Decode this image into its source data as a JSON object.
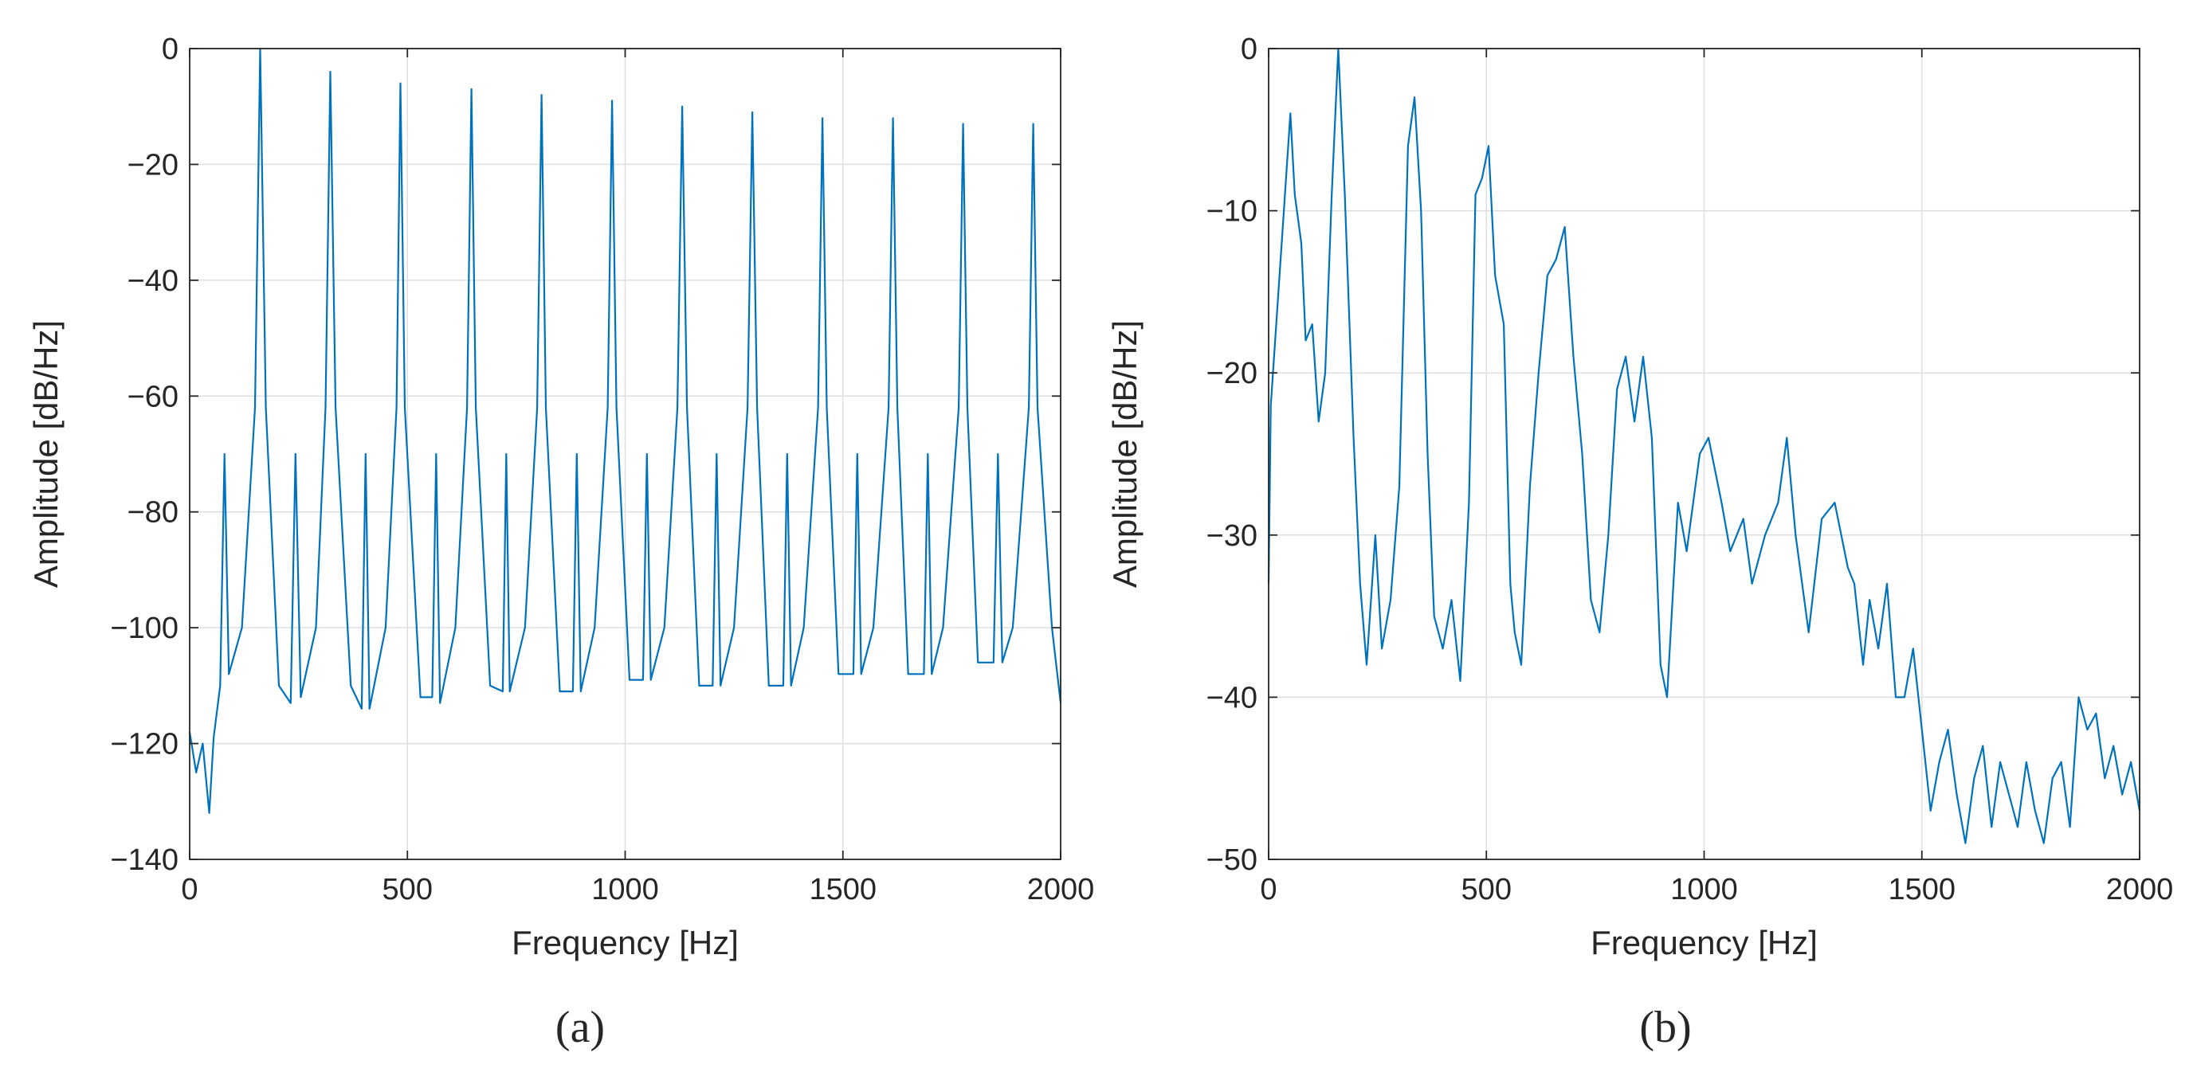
{
  "chart_data": [
    {
      "type": "line",
      "panel_label": "(a)",
      "xlabel": "Frequency [Hz]",
      "ylabel": "Amplitude [dB/Hz]",
      "xlim": [
        0,
        2000
      ],
      "ylim": [
        -140,
        0
      ],
      "xticks": [
        0,
        500,
        1000,
        1500,
        2000
      ],
      "yticks": [
        -140,
        -120,
        -100,
        -80,
        -60,
        -40,
        -20,
        0
      ],
      "xtick_labels": [
        "0",
        "500",
        "1000",
        "1500",
        "2000"
      ],
      "ytick_labels": [
        "−140",
        "−120",
        "−100",
        "−80",
        "−60",
        "−40",
        "−20",
        "0"
      ],
      "grid": true,
      "line_color": "#0072BD",
      "series": [
        {
          "x": [
            0,
            15,
            30,
            45,
            55,
            70,
            80,
            90,
            120,
            150,
            162,
            175,
            205,
            232,
            243,
            255,
            290,
            312,
            323,
            335,
            370,
            395,
            404,
            413,
            450,
            475,
            484,
            494,
            530,
            557,
            566,
            575,
            610,
            637,
            647,
            657,
            690,
            719,
            727,
            735,
            770,
            798,
            808,
            818,
            850,
            880,
            889,
            898,
            930,
            960,
            970,
            980,
            1010,
            1041,
            1050,
            1059,
            1090,
            1120,
            1131,
            1142,
            1170,
            1201,
            1210,
            1219,
            1250,
            1281,
            1292,
            1303,
            1330,
            1363,
            1372,
            1381,
            1410,
            1443,
            1453,
            1463,
            1490,
            1524,
            1533,
            1542,
            1570,
            1605,
            1615,
            1625,
            1650,
            1686,
            1695,
            1704,
            1730,
            1766,
            1776,
            1786,
            1810,
            1846,
            1856,
            1866,
            1890,
            1927,
            1937,
            1947,
            1980,
            2000
          ],
          "y": [
            -118,
            -125,
            -120,
            -132,
            -119,
            -110,
            -70,
            -108,
            -100,
            -62,
            0,
            -62,
            -110,
            -113,
            -70,
            -112,
            -100,
            -62,
            -4,
            -62,
            -110,
            -114,
            -70,
            -114,
            -100,
            -62,
            -6,
            -62,
            -112,
            -112,
            -70,
            -113,
            -100,
            -62,
            -7,
            -62,
            -110,
            -111,
            -70,
            -111,
            -100,
            -62,
            -8,
            -62,
            -111,
            -111,
            -70,
            -111,
            -100,
            -62,
            -9,
            -62,
            -109,
            -109,
            -70,
            -109,
            -100,
            -62,
            -10,
            -62,
            -110,
            -110,
            -70,
            -110,
            -100,
            -62,
            -11,
            -62,
            -110,
            -110,
            -70,
            -110,
            -100,
            -62,
            -12,
            -62,
            -108,
            -108,
            -70,
            -108,
            -100,
            -62,
            -12,
            -62,
            -108,
            -108,
            -70,
            -108,
            -100,
            -62,
            -13,
            -62,
            -106,
            -106,
            -70,
            -106,
            -100,
            -62,
            -13,
            -62,
            -100,
            -113
          ]
        }
      ]
    },
    {
      "type": "line",
      "panel_label": "(b)",
      "xlabel": "Frequency [Hz]",
      "ylabel": "Amplitude [dB/Hz]",
      "xlim": [
        0,
        2000
      ],
      "ylim": [
        -50,
        0
      ],
      "xticks": [
        0,
        500,
        1000,
        1500,
        2000
      ],
      "yticks": [
        -50,
        -40,
        -30,
        -20,
        -10,
        0
      ],
      "xtick_labels": [
        "0",
        "500",
        "1000",
        "1500",
        "2000"
      ],
      "ytick_labels": [
        "−50",
        "−40",
        "−30",
        "−20",
        "−10",
        "0"
      ],
      "grid": true,
      "line_color": "#0072BD",
      "series": [
        {
          "x": [
            0,
            5,
            15,
            30,
            50,
            60,
            75,
            85,
            100,
            115,
            130,
            145,
            160,
            175,
            195,
            210,
            225,
            245,
            260,
            280,
            300,
            320,
            335,
            350,
            365,
            380,
            400,
            420,
            440,
            460,
            475,
            490,
            505,
            520,
            540,
            555,
            565,
            580,
            600,
            620,
            640,
            660,
            680,
            700,
            720,
            740,
            760,
            780,
            800,
            820,
            840,
            860,
            880,
            900,
            915,
            940,
            960,
            990,
            1010,
            1040,
            1060,
            1090,
            1110,
            1140,
            1170,
            1190,
            1210,
            1240,
            1270,
            1300,
            1330,
            1345,
            1365,
            1380,
            1400,
            1420,
            1440,
            1460,
            1480,
            1500,
            1520,
            1540,
            1560,
            1580,
            1600,
            1620,
            1640,
            1660,
            1680,
            1700,
            1720,
            1740,
            1760,
            1780,
            1800,
            1820,
            1840,
            1860,
            1880,
            1900,
            1920,
            1940,
            1960,
            1980,
            2000
          ],
          "y": [
            -33,
            -22,
            -18,
            -12,
            -4,
            -9,
            -12,
            -18,
            -17,
            -23,
            -20,
            -9,
            0,
            -9,
            -24,
            -33,
            -38,
            -30,
            -37,
            -34,
            -27,
            -6,
            -3,
            -10,
            -25,
            -35,
            -37,
            -34,
            -39,
            -28,
            -9,
            -8,
            -6,
            -14,
            -17,
            -33,
            -36,
            -38,
            -27,
            -20,
            -14,
            -13,
            -11,
            -19,
            -25,
            -34,
            -36,
            -30,
            -21,
            -19,
            -23,
            -19,
            -24,
            -38,
            -40,
            -28,
            -31,
            -25,
            -24,
            -28,
            -31,
            -29,
            -33,
            -30,
            -28,
            -24,
            -30,
            -36,
            -29,
            -28,
            -32,
            -33,
            -38,
            -34,
            -37,
            -33,
            -40,
            -40,
            -37,
            -42,
            -47,
            -44,
            -42,
            -46,
            -49,
            -45,
            -43,
            -48,
            -44,
            -46,
            -48,
            -44,
            -47,
            -49,
            -45,
            -44,
            -48,
            -40,
            -42,
            -41,
            -45,
            -43,
            -46,
            -44,
            -47
          ]
        }
      ]
    }
  ]
}
